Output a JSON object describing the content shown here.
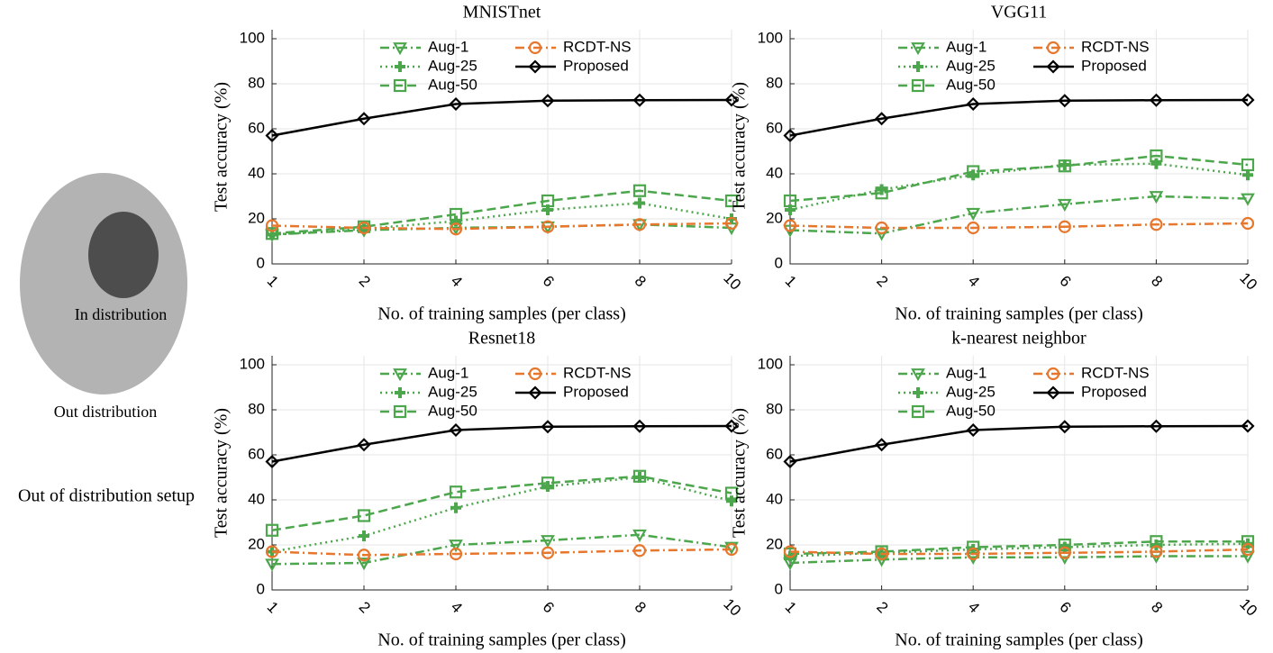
{
  "diagram": {
    "inner_label": "In distribution",
    "outer_label": "Out distribution",
    "caption": "Out of distribution setup"
  },
  "chart_data": [
    {
      "type": "line",
      "title": "MNISTnet",
      "x_label": "No. of training samples (per class)",
      "y_label": "Test accuracy (%)",
      "categories": [
        "1",
        "2",
        "4",
        "6",
        "8",
        "10"
      ],
      "ylim": [
        0,
        104
      ],
      "yticks": [
        0,
        20,
        40,
        60,
        80,
        100
      ],
      "grid": true,
      "legend": "upper center",
      "series": [
        {
          "name": "Aug-1",
          "color": "#4ca64c",
          "marker": "triangle-down",
          "dash": "dashdot",
          "values": [
            13,
            15,
            16,
            16.5,
            17.5,
            16
          ]
        },
        {
          "name": "Aug-25",
          "color": "#4ca64c",
          "marker": "plus",
          "dash": "dotted",
          "values": [
            13,
            15.5,
            19,
            24,
            27,
            20
          ]
        },
        {
          "name": "Aug-50",
          "color": "#4ca64c",
          "marker": "square",
          "dash": "dashed",
          "values": [
            13.5,
            16.5,
            22,
            28,
            32.5,
            28
          ]
        },
        {
          "name": "RCDT-NS",
          "color": "#e8772e",
          "marker": "circle",
          "dash": "dashdot",
          "values": [
            17,
            16,
            15.5,
            16.5,
            17.5,
            18
          ]
        },
        {
          "name": "Proposed",
          "color": "#000000",
          "marker": "diamond",
          "dash": "solid",
          "values": [
            57,
            64.5,
            71,
            72.5,
            72.7,
            72.8
          ]
        }
      ]
    },
    {
      "type": "line",
      "title": "VGG11",
      "x_label": "No. of training samples (per class)",
      "y_label": "Test accuracy (%)",
      "categories": [
        "1",
        "2",
        "4",
        "6",
        "8",
        "10"
      ],
      "ylim": [
        0,
        104
      ],
      "yticks": [
        0,
        20,
        40,
        60,
        80,
        100
      ],
      "grid": true,
      "legend": "upper center",
      "series": [
        {
          "name": "Aug-1",
          "color": "#4ca64c",
          "marker": "triangle-down",
          "dash": "dashdot",
          "values": [
            15,
            13.5,
            22.5,
            26.5,
            30,
            29
          ]
        },
        {
          "name": "Aug-25",
          "color": "#4ca64c",
          "marker": "plus",
          "dash": "dotted",
          "values": [
            24,
            33,
            39.5,
            44,
            44.5,
            39.5
          ]
        },
        {
          "name": "Aug-50",
          "color": "#4ca64c",
          "marker": "square",
          "dash": "dashed",
          "values": [
            28,
            31.5,
            41,
            43.5,
            48,
            44
          ]
        },
        {
          "name": "RCDT-NS",
          "color": "#e8772e",
          "marker": "circle",
          "dash": "dashdot",
          "values": [
            17,
            16,
            16,
            16.5,
            17.5,
            18
          ]
        },
        {
          "name": "Proposed",
          "color": "#000000",
          "marker": "diamond",
          "dash": "solid",
          "values": [
            57,
            64.5,
            71,
            72.5,
            72.7,
            72.8
          ]
        }
      ]
    },
    {
      "type": "line",
      "title": "Resnet18",
      "x_label": "No. of training samples (per class)",
      "y_label": "Test accuracy (%)",
      "categories": [
        "1",
        "2",
        "4",
        "6",
        "8",
        "10"
      ],
      "ylim": [
        0,
        104
      ],
      "yticks": [
        0,
        20,
        40,
        60,
        80,
        100
      ],
      "grid": true,
      "legend": "upper center",
      "series": [
        {
          "name": "Aug-1",
          "color": "#4ca64c",
          "marker": "triangle-down",
          "dash": "dashdot",
          "values": [
            11.5,
            12,
            20,
            22,
            24.5,
            19
          ]
        },
        {
          "name": "Aug-25",
          "color": "#4ca64c",
          "marker": "plus",
          "dash": "dotted",
          "values": [
            17,
            24,
            36.5,
            46,
            50,
            39.5
          ]
        },
        {
          "name": "Aug-50",
          "color": "#4ca64c",
          "marker": "square",
          "dash": "dashed",
          "values": [
            26.5,
            33,
            43.5,
            47.5,
            50.5,
            43
          ]
        },
        {
          "name": "RCDT-NS",
          "color": "#e8772e",
          "marker": "circle",
          "dash": "dashdot",
          "values": [
            17,
            15.5,
            16,
            16.5,
            17.5,
            18
          ]
        },
        {
          "name": "Proposed",
          "color": "#000000",
          "marker": "diamond",
          "dash": "solid",
          "values": [
            57,
            64.5,
            71,
            72.5,
            72.7,
            72.8
          ]
        }
      ]
    },
    {
      "type": "line",
      "title": "k-nearest neighbor",
      "x_label": "No. of training samples (per class)",
      "y_label": "Test accuracy (%)",
      "categories": [
        "1",
        "2",
        "4",
        "6",
        "8",
        "10"
      ],
      "ylim": [
        0,
        104
      ],
      "yticks": [
        0,
        20,
        40,
        60,
        80,
        100
      ],
      "grid": true,
      "legend": "upper center",
      "series": [
        {
          "name": "Aug-1",
          "color": "#4ca64c",
          "marker": "triangle-down",
          "dash": "dashdot",
          "values": [
            12,
            13.5,
            14.5,
            14.5,
            15,
            15
          ]
        },
        {
          "name": "Aug-25",
          "color": "#4ca64c",
          "marker": "plus",
          "dash": "dotted",
          "values": [
            15,
            16.5,
            18,
            19,
            20,
            20.5
          ]
        },
        {
          "name": "Aug-50",
          "color": "#4ca64c",
          "marker": "square",
          "dash": "dashed",
          "values": [
            16,
            17,
            19,
            20,
            21.5,
            21.5
          ]
        },
        {
          "name": "RCDT-NS",
          "color": "#e8772e",
          "marker": "circle",
          "dash": "dashdot",
          "values": [
            17,
            16,
            16,
            16.5,
            17,
            18
          ]
        },
        {
          "name": "Proposed",
          "color": "#000000",
          "marker": "diamond",
          "dash": "solid",
          "values": [
            57,
            64.5,
            71,
            72.5,
            72.7,
            72.8
          ]
        }
      ]
    }
  ]
}
